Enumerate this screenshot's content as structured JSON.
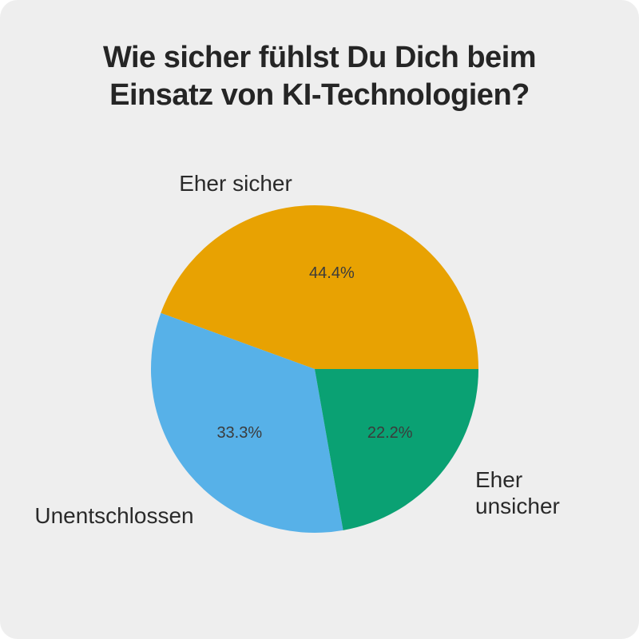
{
  "page": {
    "outer_background": "#FFFFFF",
    "card_background": "#EEEEEE"
  },
  "title": {
    "text": "Wie sicher fühlst Du Dich beim Einsatz von KI-Technologien?",
    "lines": [
      "Wie sicher fühlst Du Dich beim",
      "Einsatz von KI-Technologien?"
    ]
  },
  "chart_data": {
    "type": "pie",
    "title": "Wie sicher fühlst Du Dich beim Einsatz von KI-Technologien?",
    "start_angle_deg": 0,
    "direction": "counterclockwise",
    "legend_position": "outside-labels",
    "slices": [
      {
        "label": "Eher sicher",
        "value_pct": 44.4,
        "pct_label": "44.4%",
        "color": "#E8A202"
      },
      {
        "label": "Unentschlossen",
        "value_pct": 33.3,
        "pct_label": "33.3%",
        "color": "#57B1E8"
      },
      {
        "label": "Eher unsicher",
        "value_pct": 22.2,
        "pct_label": "22.2%",
        "color": "#0AA173"
      }
    ],
    "text_colors": {
      "title": "#252525",
      "category_labels": "#2A2A2A",
      "percent_labels": "#3B3B3B"
    }
  }
}
